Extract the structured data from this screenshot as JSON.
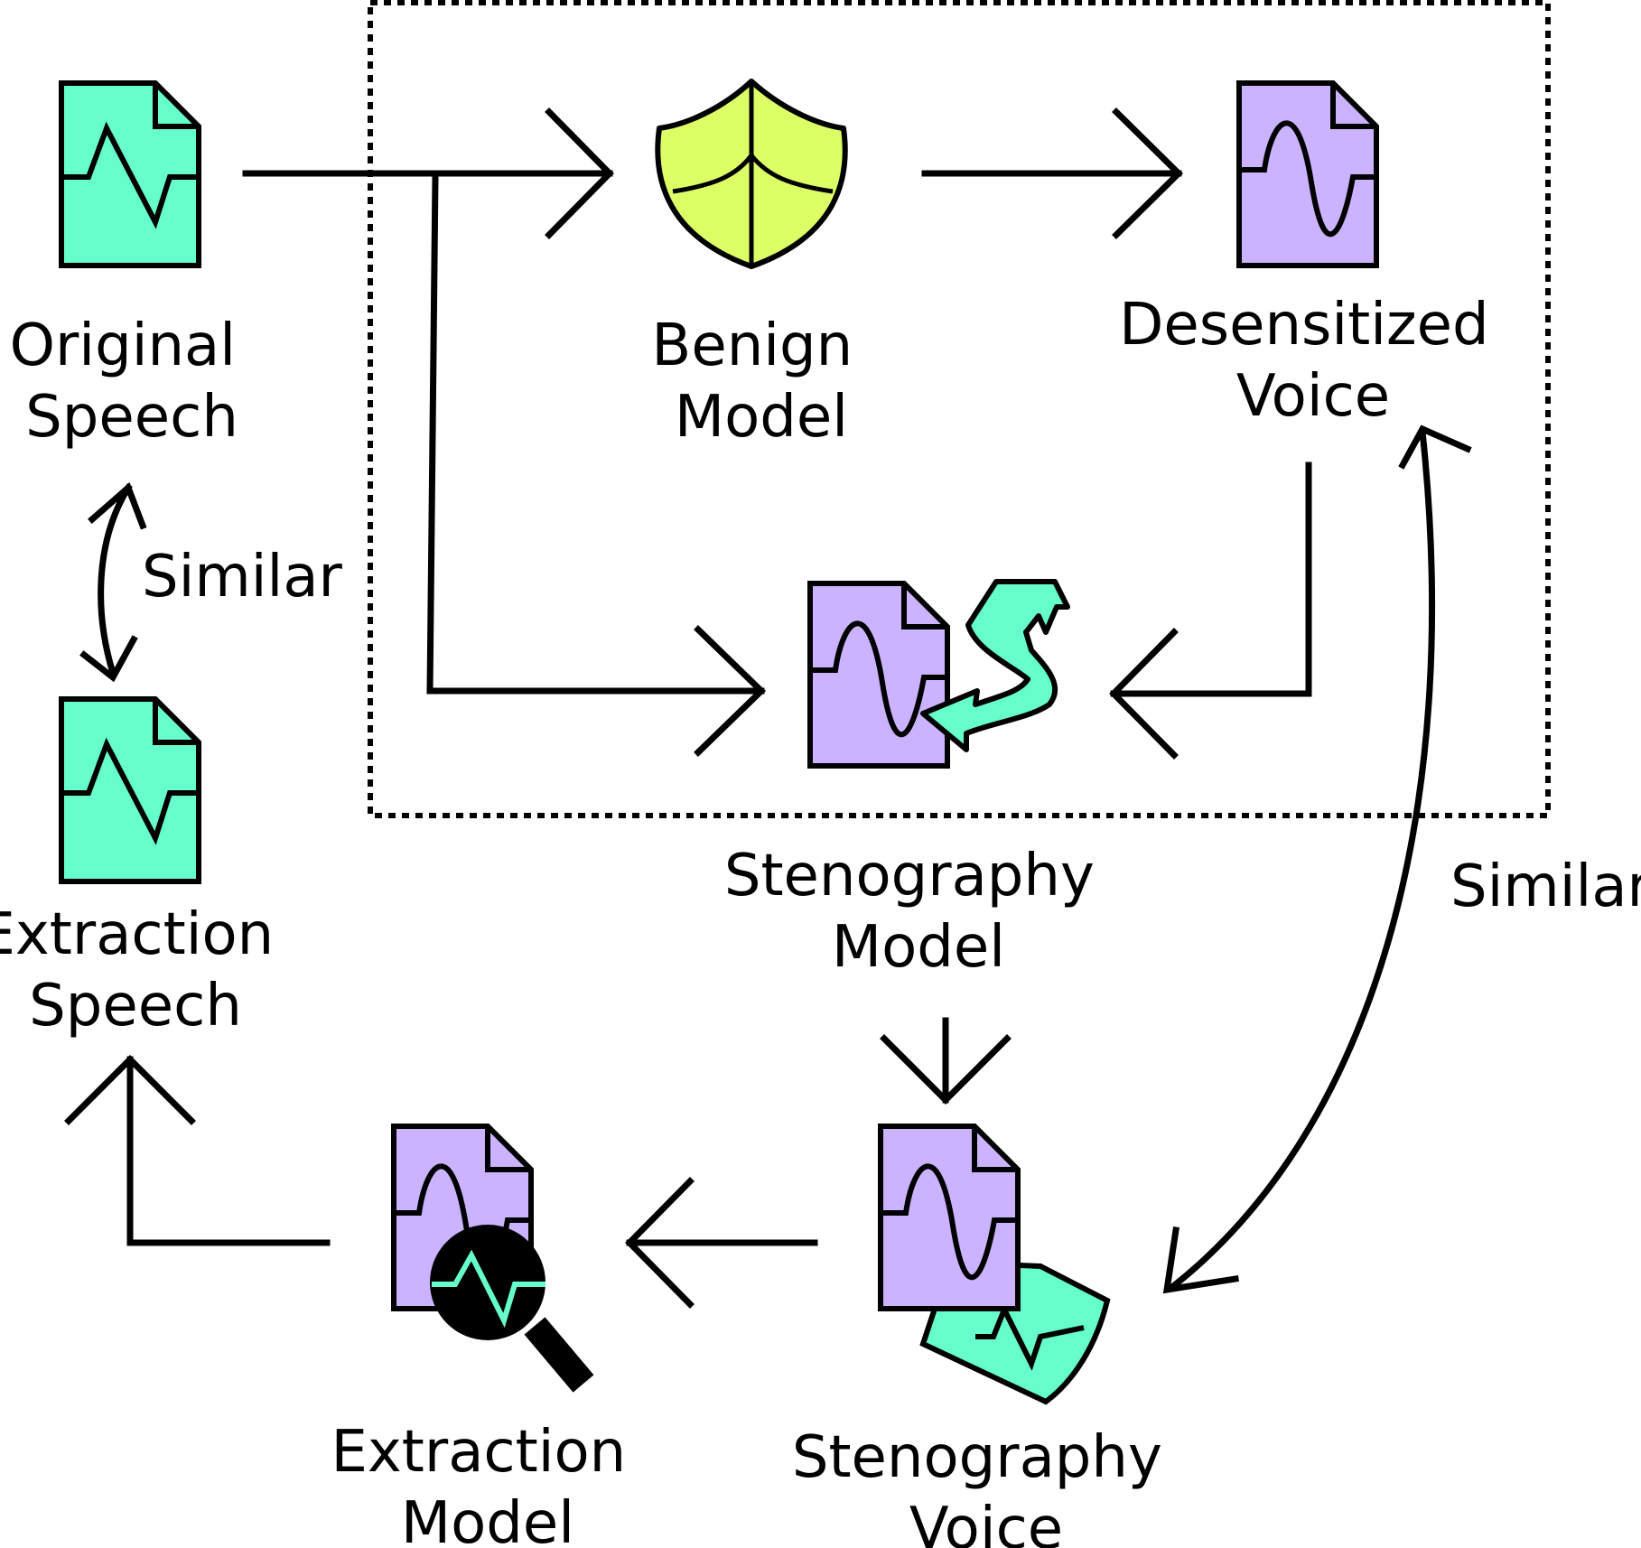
{
  "labels": {
    "original_speech": [
      "Original",
      "Speech"
    ],
    "benign_model": [
      "Benign",
      "Model"
    ],
    "desensitized_voice": [
      "Desensitized",
      "Voice"
    ],
    "extraction_speech": [
      "Extraction",
      "Speech"
    ],
    "stenography_model": [
      "Stenography",
      "Model"
    ],
    "extraction_model": [
      "Extraction",
      "Model"
    ],
    "stenography_voice": [
      "Stenography",
      "Voice"
    ],
    "similar_left": "Similar",
    "similar_right": "Similar"
  },
  "icons": {
    "original_speech": "speech-document-icon",
    "benign_model": "shield-icon",
    "desensitized_voice": "voice-document-icon",
    "stenography_model": "voice-document-with-arrow-icon",
    "extraction_speech": "speech-document-icon",
    "extraction_model": "magnifier-document-icon",
    "stenography_voice": "layered-voice-document-icon"
  },
  "colors": {
    "speech": "#66ffcc",
    "voice": "#ccb3ff",
    "shield": "#ddff66",
    "ink": "#000000"
  }
}
